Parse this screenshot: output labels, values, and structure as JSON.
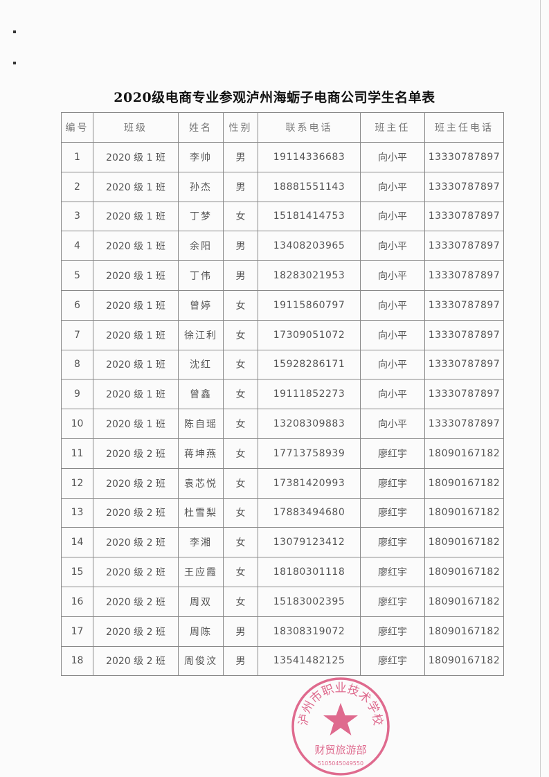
{
  "title": "2020级电商专业参观泸州海蛎子电商公司学生名单表",
  "columns": [
    "编号",
    "班级",
    "姓名",
    "性别",
    "联系电话",
    "班主任",
    "班主任电话"
  ],
  "rows": [
    [
      "1",
      "2020 级 1 班",
      "李帅",
      "男",
      "19114336683",
      "向小平",
      "13330787897"
    ],
    [
      "2",
      "2020 级 1 班",
      "孙杰",
      "男",
      "18881551143",
      "向小平",
      "13330787897"
    ],
    [
      "3",
      "2020 级 1 班",
      "丁梦",
      "女",
      "15181414753",
      "向小平",
      "13330787897"
    ],
    [
      "4",
      "2020 级 1 班",
      "余阳",
      "男",
      "13408203965",
      "向小平",
      "13330787897"
    ],
    [
      "5",
      "2020 级 1 班",
      "丁伟",
      "男",
      "18283021953",
      "向小平",
      "13330787897"
    ],
    [
      "6",
      "2020 级 1 班",
      "曾婷",
      "女",
      "19115860797",
      "向小平",
      "13330787897"
    ],
    [
      "7",
      "2020 级 1 班",
      "徐江利",
      "女",
      "17309051072",
      "向小平",
      "13330787897"
    ],
    [
      "8",
      "2020 级 1 班",
      "沈红",
      "女",
      "15928286171",
      "向小平",
      "13330787897"
    ],
    [
      "9",
      "2020 级 1 班",
      "曾鑫",
      "女",
      "19111852273",
      "向小平",
      "13330787897"
    ],
    [
      "10",
      "2020 级 1 班",
      "陈自瑶",
      "女",
      "13208309883",
      "向小平",
      "13330787897"
    ],
    [
      "11",
      "2020 级 2 班",
      "蒋坤燕",
      "女",
      "17713758939",
      "廖红宇",
      "18090167182"
    ],
    [
      "12",
      "2020 级 2 班",
      "袁芯悦",
      "女",
      "17381420993",
      "廖红宇",
      "18090167182"
    ],
    [
      "13",
      "2020 级 2 班",
      "杜雪梨",
      "女",
      "17883494680",
      "廖红宇",
      "18090167182"
    ],
    [
      "14",
      "2020 级 2 班",
      "李湘",
      "女",
      "13079123412",
      "廖红宇",
      "18090167182"
    ],
    [
      "15",
      "2020 级 2 班",
      "王应霞",
      "女",
      "18180301118",
      "廖红宇",
      "18090167182"
    ],
    [
      "16",
      "2020 级 2 班",
      "周双",
      "女",
      "15183002395",
      "廖红宇",
      "18090167182"
    ],
    [
      "17",
      "2020 级 2 班",
      "周陈",
      "男",
      "18308319072",
      "廖红宇",
      "18090167182"
    ],
    [
      "18",
      "2020 级 2 班",
      "周俊汶",
      "男",
      "13541482125",
      "廖红宇",
      "18090167182"
    ]
  ],
  "stamp": {
    "top_text": "泸州市职业技术学校",
    "bottom_text": "财贸旅游部",
    "number": "5105045049550",
    "color": "#d9507a"
  }
}
